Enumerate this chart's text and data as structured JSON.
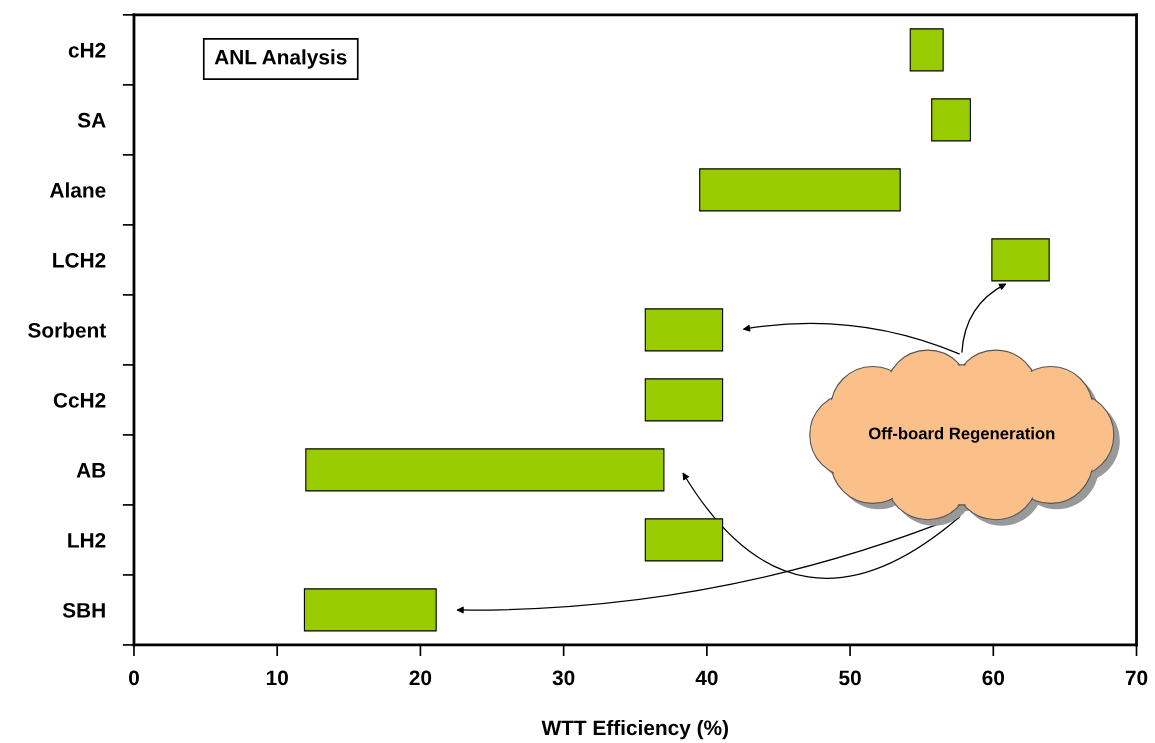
{
  "chart_data": {
    "type": "bar",
    "orientation": "horizontal",
    "xlabel": "WTT Efficiency (%)",
    "categories": [
      "cH2",
      "SA",
      "Alane",
      "LCH2",
      "Sorbent",
      "CcH2",
      "AB",
      "LH2",
      "SBH"
    ],
    "base": [
      54.2,
      55.7,
      39.5,
      59.9,
      35.7,
      35.7,
      12.0,
      35.7,
      11.9
    ],
    "values": [
      2.3,
      2.7,
      14.0,
      4.0,
      5.4,
      5.4,
      25.0,
      5.4,
      9.2
    ],
    "color": "#99cc00",
    "xlim": [
      0,
      70
    ],
    "xticks": [
      0,
      10,
      20,
      30,
      40,
      50,
      60,
      70
    ],
    "grid": false,
    "legend": false,
    "annotations": [
      "ANL Analysis",
      "Off-board Regeneration"
    ]
  }
}
